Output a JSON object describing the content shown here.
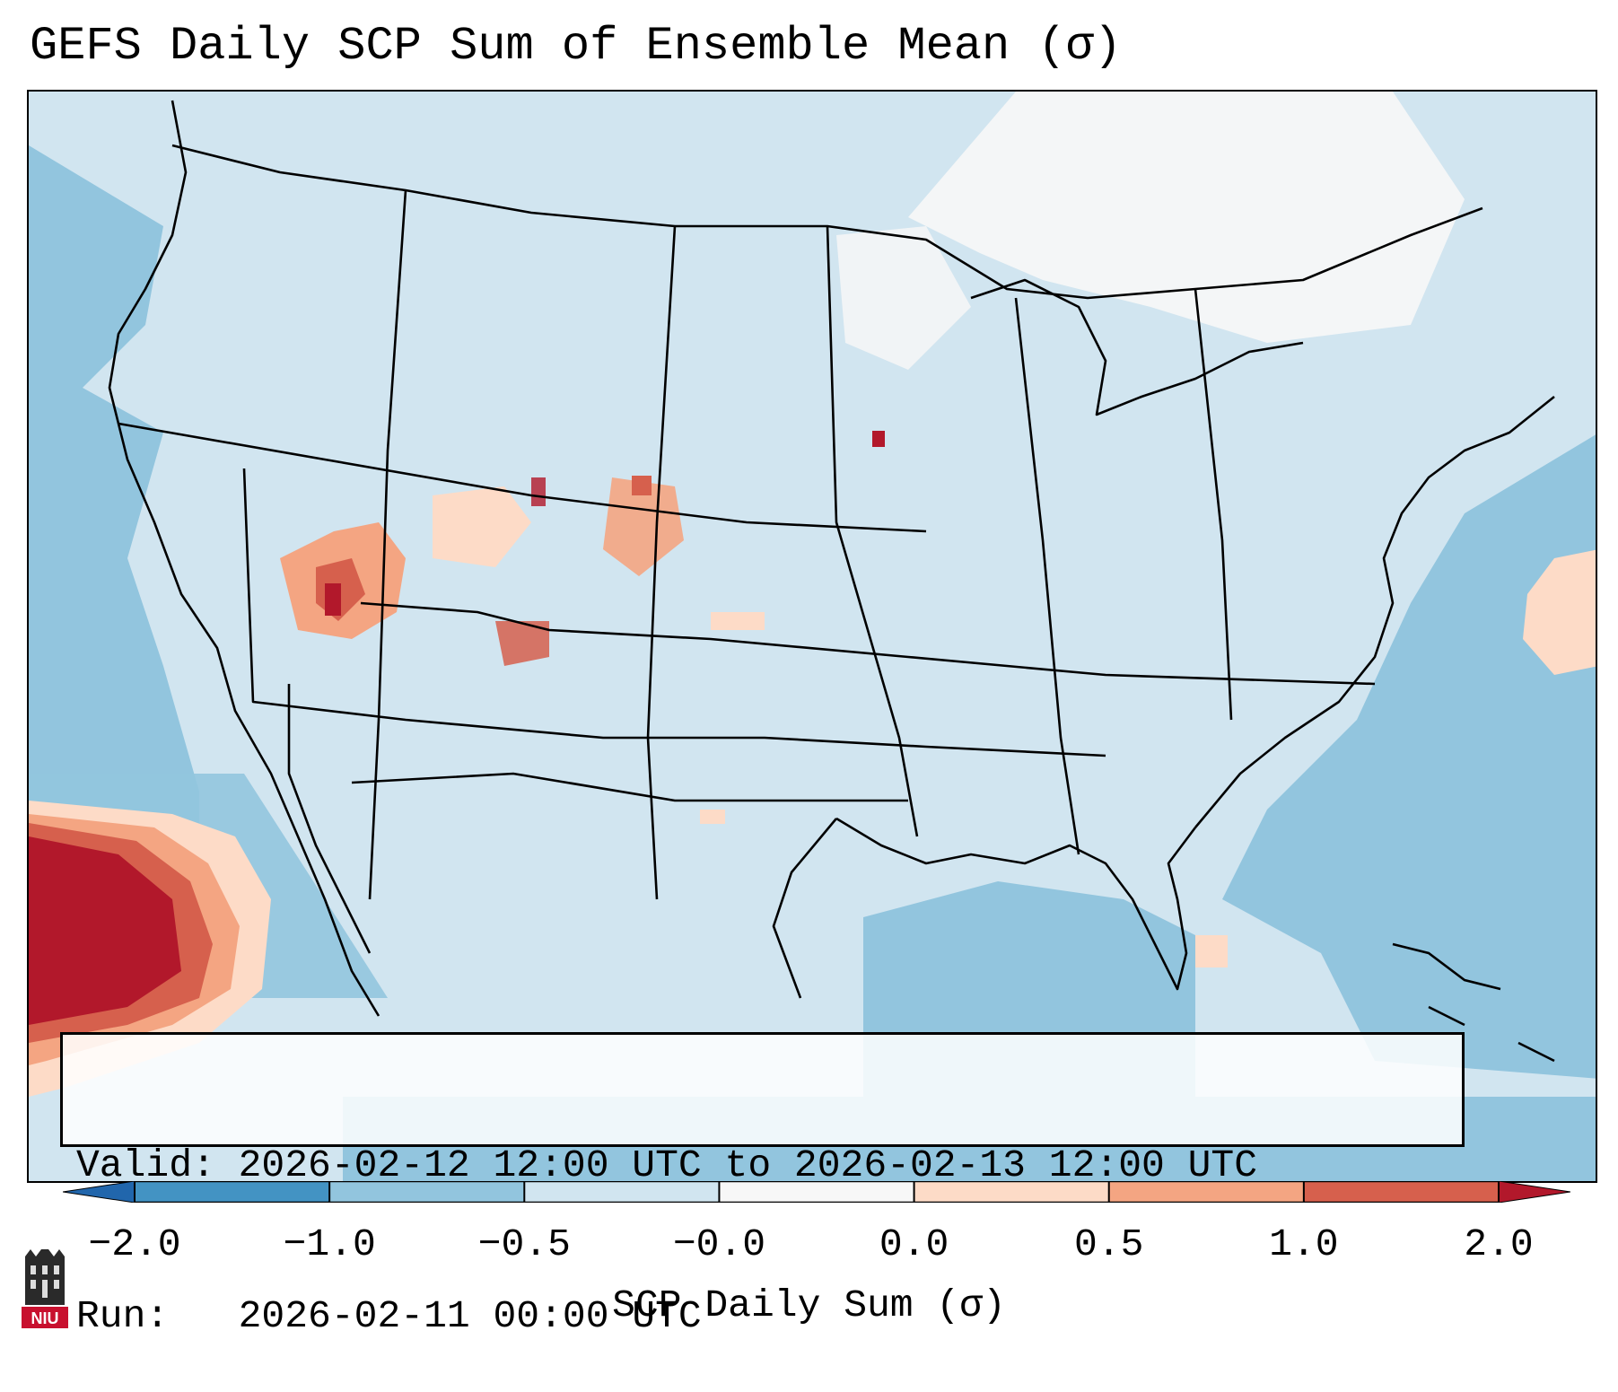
{
  "title": "GEFS Daily SCP Sum of Ensemble Mean (σ)",
  "info": {
    "valid_line": "Valid: 2026-02-12 12:00 UTC to 2026-02-13 12:00 UTC",
    "run_line": "Run:   2026-02-11 00:00 UTC"
  },
  "colorbar": {
    "label": "SCP Daily Sum (σ)",
    "ticks": [
      "−2.0",
      "−1.0",
      "−0.5",
      "−0.0",
      "0.0",
      "0.5",
      "1.0",
      "2.0"
    ],
    "bins": [
      {
        "from": "−2.0",
        "to": "−1.0",
        "color": "#4393c3"
      },
      {
        "from": "−1.0",
        "to": "−0.5",
        "color": "#92c5de"
      },
      {
        "from": "−0.5",
        "to": "−0.0",
        "color": "#d1e5f0"
      },
      {
        "from": "−0.0",
        "to": "0.0",
        "color": "#f7f7f7"
      },
      {
        "from": "0.0",
        "to": "0.5",
        "color": "#fddbc7"
      },
      {
        "from": "0.5",
        "to": "1.0",
        "color": "#f4a582"
      },
      {
        "from": "1.0",
        "to": "2.0",
        "color": "#d6604d"
      }
    ],
    "under_color": "#2166ac",
    "over_color": "#b2182b"
  },
  "map": {
    "projection": "Lambert Conformal",
    "background_color": "#d1e5f0",
    "features": [
      "Pacific low-SCP band (−1.0 to −0.5)",
      "Strong positive anomaly off Baja California (>2.0)",
      "Positive patches over Utah/Colorado (0.0 to 2.0)",
      "Atlantic low-SCP band (−1.0 to −0.5)",
      "Positive patch east of Carolinas (0.0 to 0.5)",
      "Near-zero region over Canada/Great Lakes"
    ]
  },
  "logo": {
    "text": "NIU"
  }
}
